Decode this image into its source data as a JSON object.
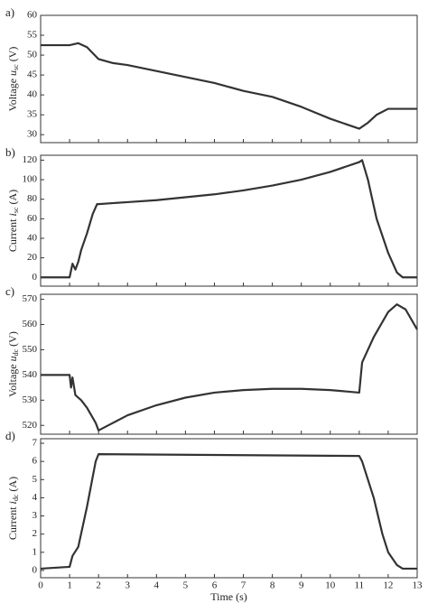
{
  "chart_data": [
    {
      "type": "line",
      "panel_label": "a)",
      "ylabel": {
        "text": "Voltage",
        "symbol": "u",
        "subscript": "sc",
        "unit": "(V)"
      },
      "xlim": [
        0,
        13
      ],
      "ylim": [
        28,
        60
      ],
      "yticks": [
        30,
        35,
        40,
        45,
        50,
        55,
        60
      ],
      "series": [
        {
          "color": "#333333",
          "x": [
            0,
            1,
            1.3,
            1.6,
            2,
            2.5,
            3,
            4,
            5,
            6,
            7,
            8,
            9,
            10,
            11,
            11.3,
            11.6,
            12,
            13
          ],
          "values": [
            52.5,
            52.5,
            53,
            52,
            49,
            48,
            47.5,
            46,
            44.5,
            43,
            41,
            39.5,
            37,
            34,
            31.5,
            33,
            35,
            36.5,
            36.5
          ]
        }
      ]
    },
    {
      "type": "line",
      "panel_label": "b)",
      "ylabel": {
        "text": "Current",
        "symbol": "i",
        "subscript": "sc",
        "unit": "(A)"
      },
      "xlim": [
        0,
        13
      ],
      "ylim": [
        -9,
        125
      ],
      "yticks": [
        0,
        20,
        40,
        60,
        80,
        100,
        120
      ],
      "series": [
        {
          "color": "#333333",
          "x": [
            0,
            1,
            1.1,
            1.2,
            1.3,
            1.4,
            1.6,
            1.8,
            1.95,
            2,
            3,
            4,
            5,
            6,
            7,
            8,
            9,
            10,
            11,
            11.1,
            11.3,
            11.6,
            12,
            12.3,
            12.5,
            13
          ],
          "values": [
            0,
            0,
            14,
            8,
            16,
            28,
            45,
            65,
            75,
            75,
            77,
            79,
            82,
            85,
            89,
            94,
            100,
            108,
            118,
            120,
            100,
            60,
            25,
            5,
            0,
            0
          ]
        }
      ]
    },
    {
      "type": "line",
      "panel_label": "c)",
      "ylabel": {
        "text": "Voltage",
        "symbol": "u",
        "subscript": "dc",
        "unit": "(V)"
      },
      "xlim": [
        0,
        13
      ],
      "ylim": [
        516.5,
        572
      ],
      "yticks": [
        520,
        530,
        540,
        550,
        560,
        570
      ],
      "series": [
        {
          "color": "#333333",
          "x": [
            0,
            1,
            1.05,
            1.1,
            1.2,
            1.4,
            1.6,
            1.9,
            2,
            2.5,
            3,
            4,
            5,
            6,
            7,
            8,
            9,
            10,
            11,
            11.1,
            11.5,
            12,
            12.3,
            12.6,
            13
          ],
          "values": [
            540,
            540,
            535,
            539,
            532,
            530,
            527,
            521,
            518,
            521,
            524,
            528,
            531,
            533,
            534,
            534.5,
            534.5,
            534,
            533,
            545,
            555,
            565,
            568,
            566,
            558
          ]
        }
      ]
    },
    {
      "type": "line",
      "panel_label": "d)",
      "ylabel": {
        "text": "Current",
        "symbol": "i",
        "subscript": "dc",
        "unit": "(A)"
      },
      "xlabel": "Time (s)",
      "xlim": [
        0,
        13
      ],
      "xticks": [
        0,
        1,
        2,
        3,
        4,
        5,
        6,
        7,
        8,
        9,
        10,
        11,
        12,
        13
      ],
      "ylim": [
        -0.4,
        7.25
      ],
      "yticks": [
        0,
        1,
        2,
        3,
        4,
        5,
        6,
        7
      ],
      "series": [
        {
          "color": "#333333",
          "x": [
            0,
            1,
            1.1,
            1.3,
            1.6,
            1.9,
            2,
            11,
            11.1,
            11.5,
            11.8,
            12,
            12.3,
            12.5,
            13
          ],
          "values": [
            0.1,
            0.2,
            0.8,
            1.3,
            3.5,
            6,
            6.4,
            6.3,
            6,
            4,
            2,
            1,
            0.3,
            0.1,
            0.1
          ]
        }
      ]
    }
  ]
}
